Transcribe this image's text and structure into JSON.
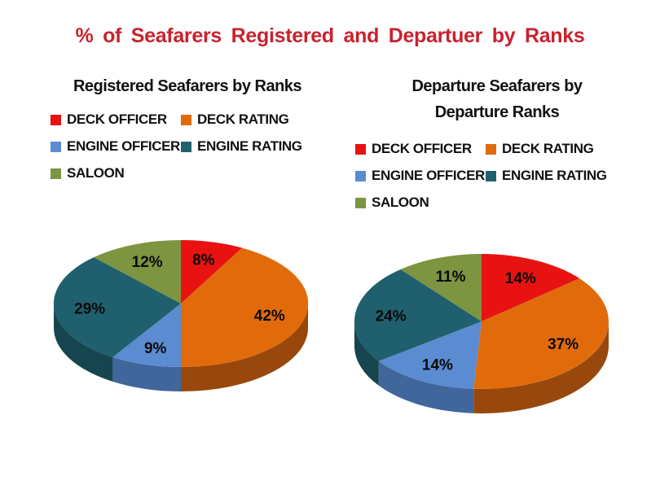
{
  "page": {
    "background": "#FFFFFF",
    "title": "% of Seafarers Registered and Departuer by Ranks",
    "title_color": "#C8222F"
  },
  "chart_data": [
    {
      "type": "pie",
      "pie_style": "3d",
      "title": "Registered Seafarers by Ranks",
      "categories": [
        "DECK OFFICER",
        "DECK RATING",
        "ENGINE OFFICER",
        "ENGINE RATING",
        "SALOON"
      ],
      "values": [
        8,
        42,
        9,
        29,
        12
      ],
      "unit": "%",
      "labels": [
        "8%",
        "42%",
        "9%",
        "29%",
        "12%"
      ],
      "colors": [
        "#E81212",
        "#E16B0B",
        "#5B8CD2",
        "#20606E",
        "#7D9440"
      ],
      "side_colors": [
        "#9B0C0C",
        "#98480C",
        "#40669C",
        "#17454F",
        "#546329"
      ],
      "legend_position": "top",
      "start_angle_deg": -90,
      "direction": "clockwise"
    },
    {
      "type": "pie",
      "pie_style": "3d",
      "title": "Departure Seafarers by Departure Ranks",
      "categories": [
        "DECK OFFICER",
        "DECK RATING",
        "ENGINE OFFICER",
        "ENGINE RATING",
        "SALOON"
      ],
      "values": [
        14,
        37,
        14,
        24,
        11
      ],
      "unit": "%",
      "labels": [
        "14%",
        "37%",
        "14%",
        "24%",
        "11%"
      ],
      "colors": [
        "#E81212",
        "#E16B0B",
        "#5B8CD2",
        "#20606E",
        "#7D9440"
      ],
      "side_colors": [
        "#9B0C0C",
        "#98480C",
        "#40669C",
        "#17454F",
        "#546329"
      ],
      "legend_position": "top",
      "start_angle_deg": -90,
      "direction": "clockwise"
    }
  ]
}
